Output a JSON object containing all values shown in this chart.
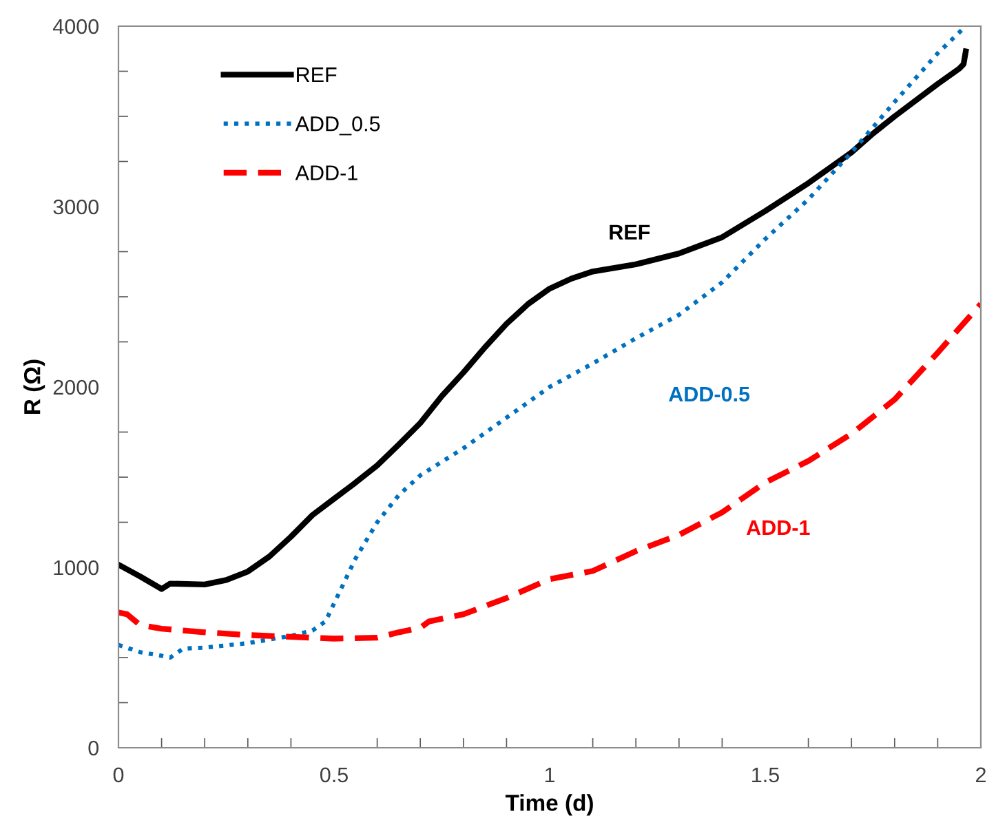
{
  "chart_data": {
    "type": "line",
    "xlabel": "Time (d)",
    "ylabel": "R (Ω)",
    "xlim": [
      0,
      2
    ],
    "xticks": [
      0,
      0.5,
      1,
      1.5,
      2
    ],
    "ylim": [
      0,
      4000
    ],
    "yticks": [
      0,
      1000,
      2000,
      3000,
      4000
    ],
    "grid": false,
    "legend": "top left",
    "series": [
      {
        "name": "REF",
        "color": "#000000",
        "line_style": "solid",
        "x": [
          0,
          0.05,
          0.1,
          0.12,
          0.2,
          0.25,
          0.3,
          0.35,
          0.4,
          0.45,
          0.5,
          0.55,
          0.6,
          0.65,
          0.7,
          0.75,
          0.8,
          0.85,
          0.9,
          0.95,
          1.0,
          1.05,
          1.1,
          1.2,
          1.3,
          1.4,
          1.5,
          1.6,
          1.7,
          1.75,
          1.8,
          1.9,
          1.95,
          1.96,
          1.965
        ],
        "values": [
          1015,
          950,
          880,
          910,
          905,
          930,
          977,
          1060,
          1170,
          1290,
          1380,
          1470,
          1565,
          1680,
          1800,
          1950,
          2080,
          2220,
          2350,
          2460,
          2545,
          2600,
          2640,
          2680,
          2740,
          2830,
          2975,
          3130,
          3300,
          3405,
          3500,
          3680,
          3765,
          3790,
          3860
        ]
      },
      {
        "name": "ADD_0.5",
        "color": "#0070c0",
        "line_style": "dotted",
        "x": [
          0,
          0.05,
          0.1,
          0.12,
          0.15,
          0.2,
          0.3,
          0.4,
          0.45,
          0.48,
          0.5,
          0.55,
          0.6,
          0.65,
          0.7,
          0.8,
          0.9,
          1.0,
          1.1,
          1.2,
          1.3,
          1.4,
          1.5,
          1.6,
          1.7,
          1.8,
          1.9,
          1.965
        ],
        "values": [
          570,
          530,
          510,
          500,
          550,
          555,
          580,
          620,
          650,
          700,
          800,
          1050,
          1250,
          1400,
          1510,
          1660,
          1830,
          2000,
          2130,
          2270,
          2400,
          2580,
          2820,
          3040,
          3300,
          3580,
          3850,
          4000
        ]
      },
      {
        "name": "ADD-1",
        "color": "#ff0000",
        "line_style": "dashed",
        "x": [
          0,
          0.02,
          0.05,
          0.1,
          0.2,
          0.3,
          0.4,
          0.5,
          0.6,
          0.65,
          0.7,
          0.72,
          0.8,
          0.9,
          1.0,
          1.1,
          1.2,
          1.3,
          1.4,
          1.5,
          1.6,
          1.7,
          1.8,
          1.9,
          2.0
        ],
        "values": [
          750,
          740,
          680,
          660,
          640,
          625,
          615,
          605,
          610,
          640,
          665,
          700,
          740,
          830,
          935,
          980,
          1090,
          1180,
          1305,
          1470,
          1590,
          1740,
          1930,
          2190,
          2460
        ]
      }
    ],
    "annotations": [
      "REF",
      "ADD-0.5",
      "ADD-1"
    ]
  }
}
